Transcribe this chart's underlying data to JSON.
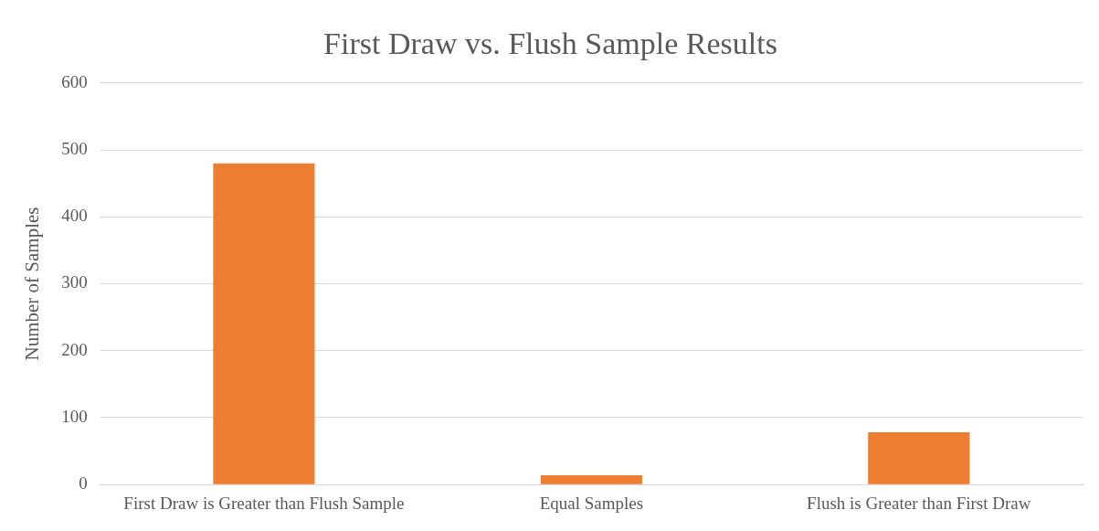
{
  "chart_data": {
    "type": "bar",
    "title": "First Draw vs. Flush Sample Results",
    "ylabel": "Number of Samples",
    "categories": [
      "First Draw is Greater than Flush Sample",
      "Equal Samples",
      "Flush is Greater than First Draw"
    ],
    "values": [
      480,
      14,
      78
    ],
    "color": "#ed7d31",
    "ylim": [
      0,
      600
    ],
    "yticks": [
      0,
      100,
      200,
      300,
      400,
      500,
      600
    ],
    "grid": "y"
  }
}
